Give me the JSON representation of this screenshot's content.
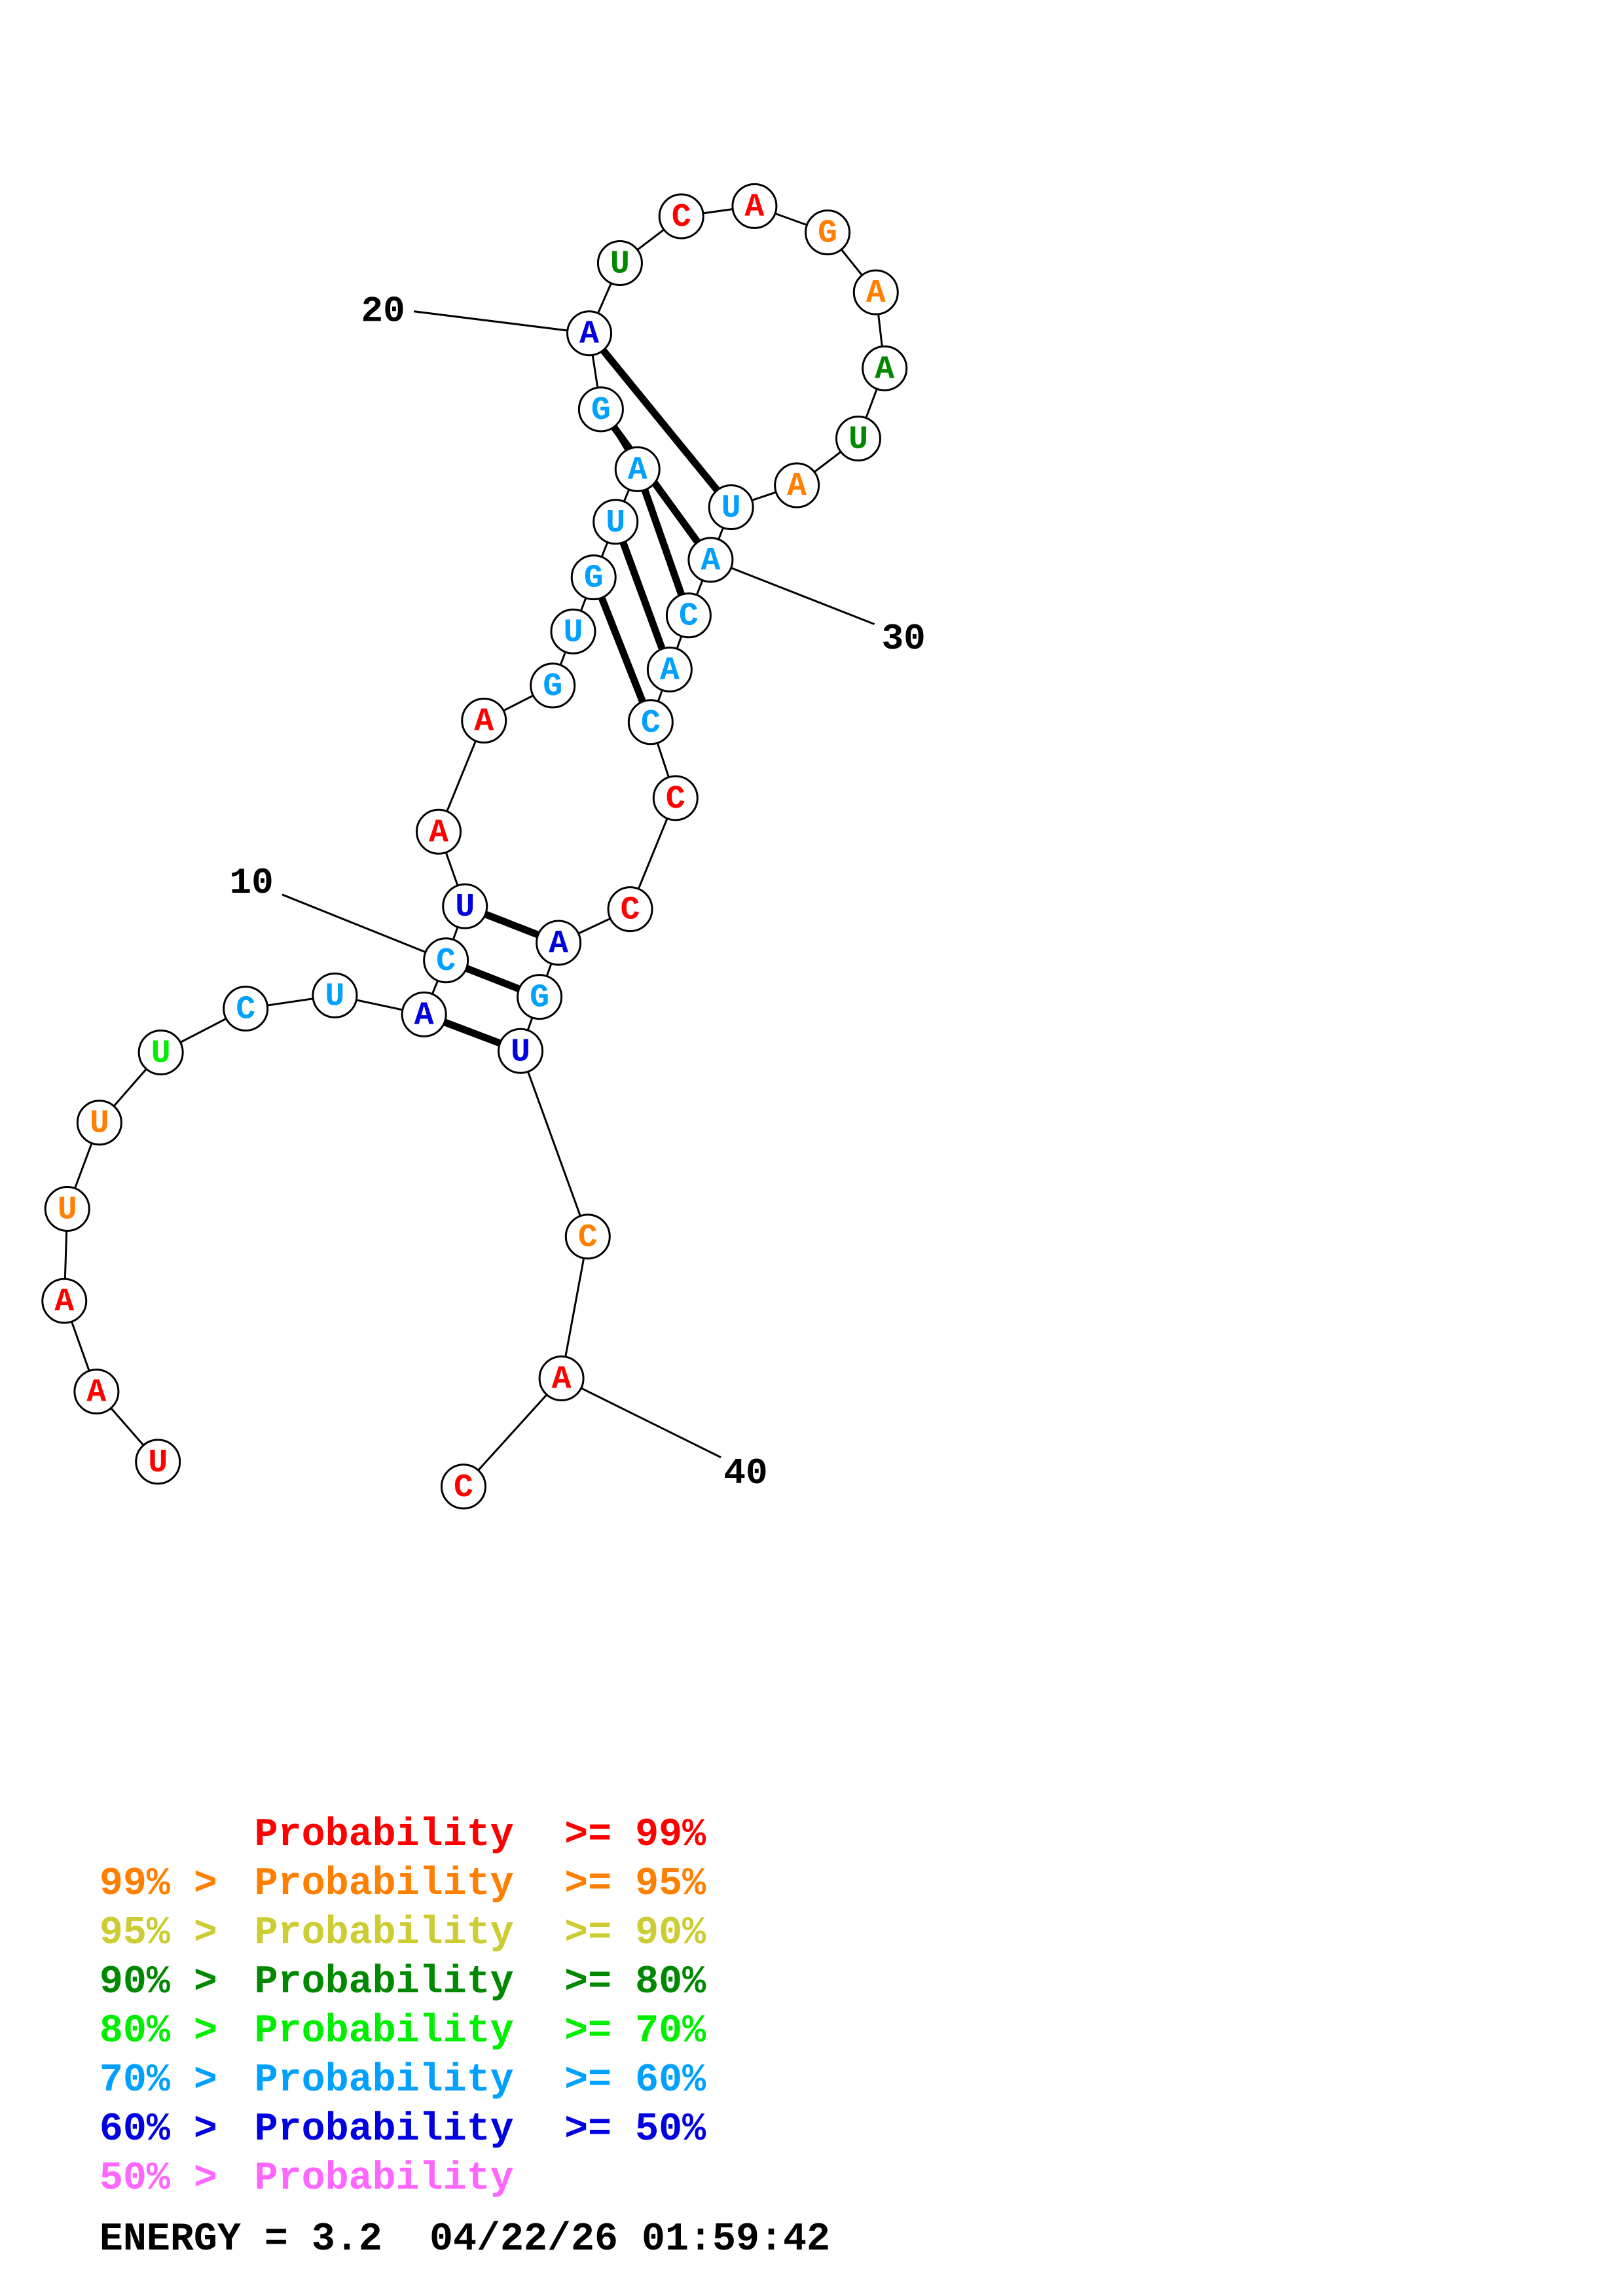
{
  "colors": {
    "p99": "#ff0000",
    "p95": "#ff8000",
    "p90": "#cccc33",
    "p80": "#008800",
    "p70": "#00ee00",
    "p60": "#00a0ff",
    "p50": "#0000e0",
    "p_low": "#ff66ff"
  },
  "nucleotides": [
    {
      "base": "U",
      "color": "p99"
    },
    {
      "base": "A",
      "color": "p99"
    },
    {
      "base": "A",
      "color": "p99"
    },
    {
      "base": "U",
      "color": "p95"
    },
    {
      "base": "U",
      "color": "p95"
    },
    {
      "base": "U",
      "color": "p70"
    },
    {
      "base": "C",
      "color": "p60"
    },
    {
      "base": "U",
      "color": "p60"
    },
    {
      "base": "A",
      "color": "p50"
    },
    {
      "base": "C",
      "color": "p60"
    },
    {
      "base": "U",
      "color": "p50"
    },
    {
      "base": "A",
      "color": "p99"
    },
    {
      "base": "A",
      "color": "p99"
    },
    {
      "base": "G",
      "color": "p60"
    },
    {
      "base": "U",
      "color": "p60"
    },
    {
      "base": "G",
      "color": "p60"
    },
    {
      "base": "U",
      "color": "p60"
    },
    {
      "base": "A",
      "color": "p60"
    },
    {
      "base": "G",
      "color": "p60"
    },
    {
      "base": "A",
      "color": "p50"
    },
    {
      "base": "U",
      "color": "p80"
    },
    {
      "base": "C",
      "color": "p99"
    },
    {
      "base": "A",
      "color": "p99"
    },
    {
      "base": "G",
      "color": "p95"
    },
    {
      "base": "A",
      "color": "p95"
    },
    {
      "base": "A",
      "color": "p80"
    },
    {
      "base": "U",
      "color": "p80"
    },
    {
      "base": "A",
      "color": "p95"
    },
    {
      "base": "U",
      "color": "p60"
    },
    {
      "base": "A",
      "color": "p60"
    },
    {
      "base": "C",
      "color": "p60"
    },
    {
      "base": "A",
      "color": "p60"
    },
    {
      "base": "C",
      "color": "p60"
    },
    {
      "base": "C",
      "color": "p99"
    },
    {
      "base": "C",
      "color": "p99"
    },
    {
      "base": "A",
      "color": "p50"
    },
    {
      "base": "G",
      "color": "p60"
    },
    {
      "base": "U",
      "color": "p50"
    },
    {
      "base": "C",
      "color": "p95"
    },
    {
      "base": "A",
      "color": "p99"
    },
    {
      "base": "C",
      "color": "p99"
    }
  ],
  "base_pairs": [
    [
      9,
      38
    ],
    [
      10,
      37
    ],
    [
      11,
      36
    ],
    [
      16,
      33
    ],
    [
      17,
      32
    ],
    [
      18,
      31
    ],
    [
      19,
      30
    ],
    [
      20,
      29
    ]
  ],
  "position_labels": [
    {
      "index": 10,
      "text": "10"
    },
    {
      "index": 20,
      "text": "20"
    },
    {
      "index": 30,
      "text": "30"
    },
    {
      "index": 40,
      "text": "40"
    }
  ],
  "legend": [
    {
      "prefix": "",
      "label": "Probability",
      "suffix": ">= 99%",
      "color": "p99"
    },
    {
      "prefix": "99% >",
      "label": "Probability",
      "suffix": ">= 95%",
      "color": "p95"
    },
    {
      "prefix": "95% >",
      "label": "Probability",
      "suffix": ">= 90%",
      "color": "p90"
    },
    {
      "prefix": "90% >",
      "label": "Probability",
      "suffix": ">= 80%",
      "color": "p80"
    },
    {
      "prefix": "80% >",
      "label": "Probability",
      "suffix": ">= 70%",
      "color": "p70"
    },
    {
      "prefix": "70% >",
      "label": "Probability",
      "suffix": ">= 60%",
      "color": "p60"
    },
    {
      "prefix": "60% >",
      "label": "Probability",
      "suffix": ">= 50%",
      "color": "p50"
    },
    {
      "prefix": "50% >",
      "label": "Probability",
      "suffix": "",
      "color": "p_low"
    }
  ],
  "energy_text": "ENERGY = 3.2  04/22/26 01:59:42"
}
